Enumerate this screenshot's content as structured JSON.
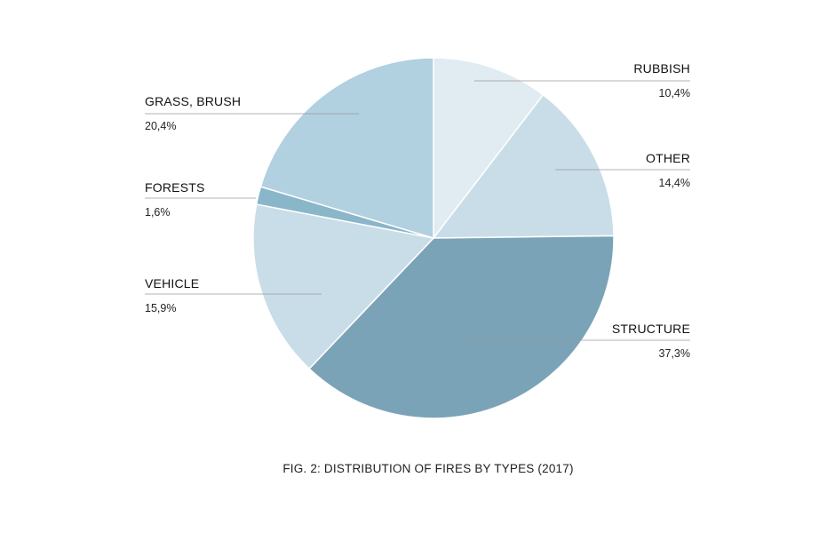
{
  "chart_data": {
    "type": "pie",
    "title": "FIG. 2: DISTRIBUTION OF FIRES BY TYPES (2017)",
    "slices": [
      {
        "label": "RUBBISH",
        "value": 10.4,
        "value_label": "10,4%",
        "color": "#e0ebf2"
      },
      {
        "label": "OTHER",
        "value": 14.4,
        "value_label": "14,4%",
        "color": "#c9dde8"
      },
      {
        "label": "STRUCTURE",
        "value": 37.3,
        "value_label": "37,3%",
        "color": "#7ba3b7"
      },
      {
        "label": "VEHICLE",
        "value": 15.9,
        "value_label": "15,9%",
        "color": "#c9dde8"
      },
      {
        "label": "FORESTS",
        "value": 1.6,
        "value_label": "1,6%",
        "color": "#8ab6c9"
      },
      {
        "label": "GRASS, BRUSH",
        "value": 20.4,
        "value_label": "20,4%",
        "color": "#b1d0e0"
      }
    ]
  }
}
